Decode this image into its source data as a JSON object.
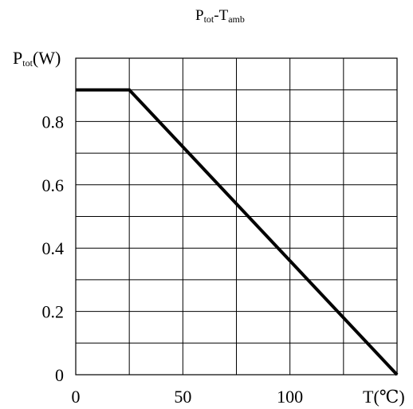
{
  "chart_data": {
    "type": "line",
    "title": "Ptot-Tamb",
    "title_parts": {
      "p": "P",
      "p_sub": "tot",
      "dash": "-",
      "t": "T",
      "t_sub": "amb"
    },
    "ylabel": "Ptot(W)",
    "ylabel_parts": {
      "p": "P",
      "p_sub": "tot",
      "unit": "(W)"
    },
    "xlabel": "T(℃)",
    "x_ticks": [
      "0",
      "50",
      "100"
    ],
    "y_ticks": [
      "0",
      "0.2",
      "0.4",
      "0.6",
      "0.8"
    ],
    "xlim": [
      0,
      150
    ],
    "ylim": [
      0,
      1.0
    ],
    "grid": true,
    "series": [
      {
        "x": [
          0,
          25,
          150
        ],
        "y": [
          0.9,
          0.9,
          0
        ]
      }
    ]
  }
}
